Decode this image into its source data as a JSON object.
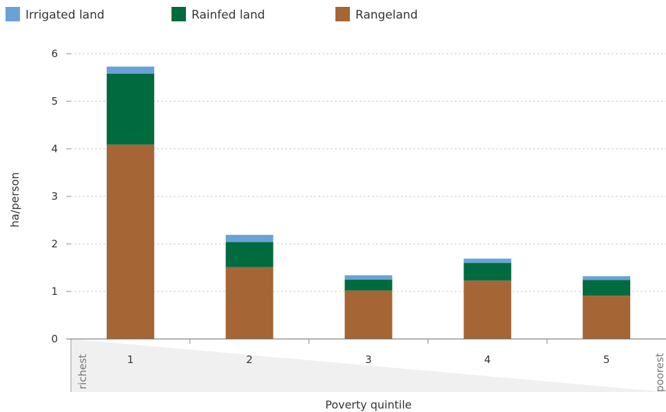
{
  "chart_data": {
    "type": "bar",
    "stacked": true,
    "categories": [
      "1",
      "2",
      "3",
      "4",
      "5"
    ],
    "series": [
      {
        "name": "Rangeland",
        "values": [
          4.09,
          1.51,
          1.02,
          1.23,
          0.91
        ],
        "color": "#A56535"
      },
      {
        "name": "Rainfed land",
        "values": [
          1.49,
          0.53,
          0.23,
          0.37,
          0.33
        ],
        "color": "#006B3F"
      },
      {
        "name": "Irrigated land",
        "values": [
          0.15,
          0.15,
          0.09,
          0.09,
          0.08
        ],
        "color": "#6AA2D8"
      }
    ],
    "legend": {
      "position": "top-left",
      "order": [
        "Irrigated land",
        "Rainfed land",
        "Rangeland"
      ]
    },
    "xlabel": "Poverty quintile",
    "ylabel": "ha/person",
    "ylim": [
      0,
      6
    ],
    "yticks": [
      0,
      1,
      2,
      3,
      4,
      5,
      6
    ],
    "grid": true,
    "wedge": {
      "left_label": "richest",
      "right_label": "poorest",
      "color": "#F0F0F0"
    }
  }
}
